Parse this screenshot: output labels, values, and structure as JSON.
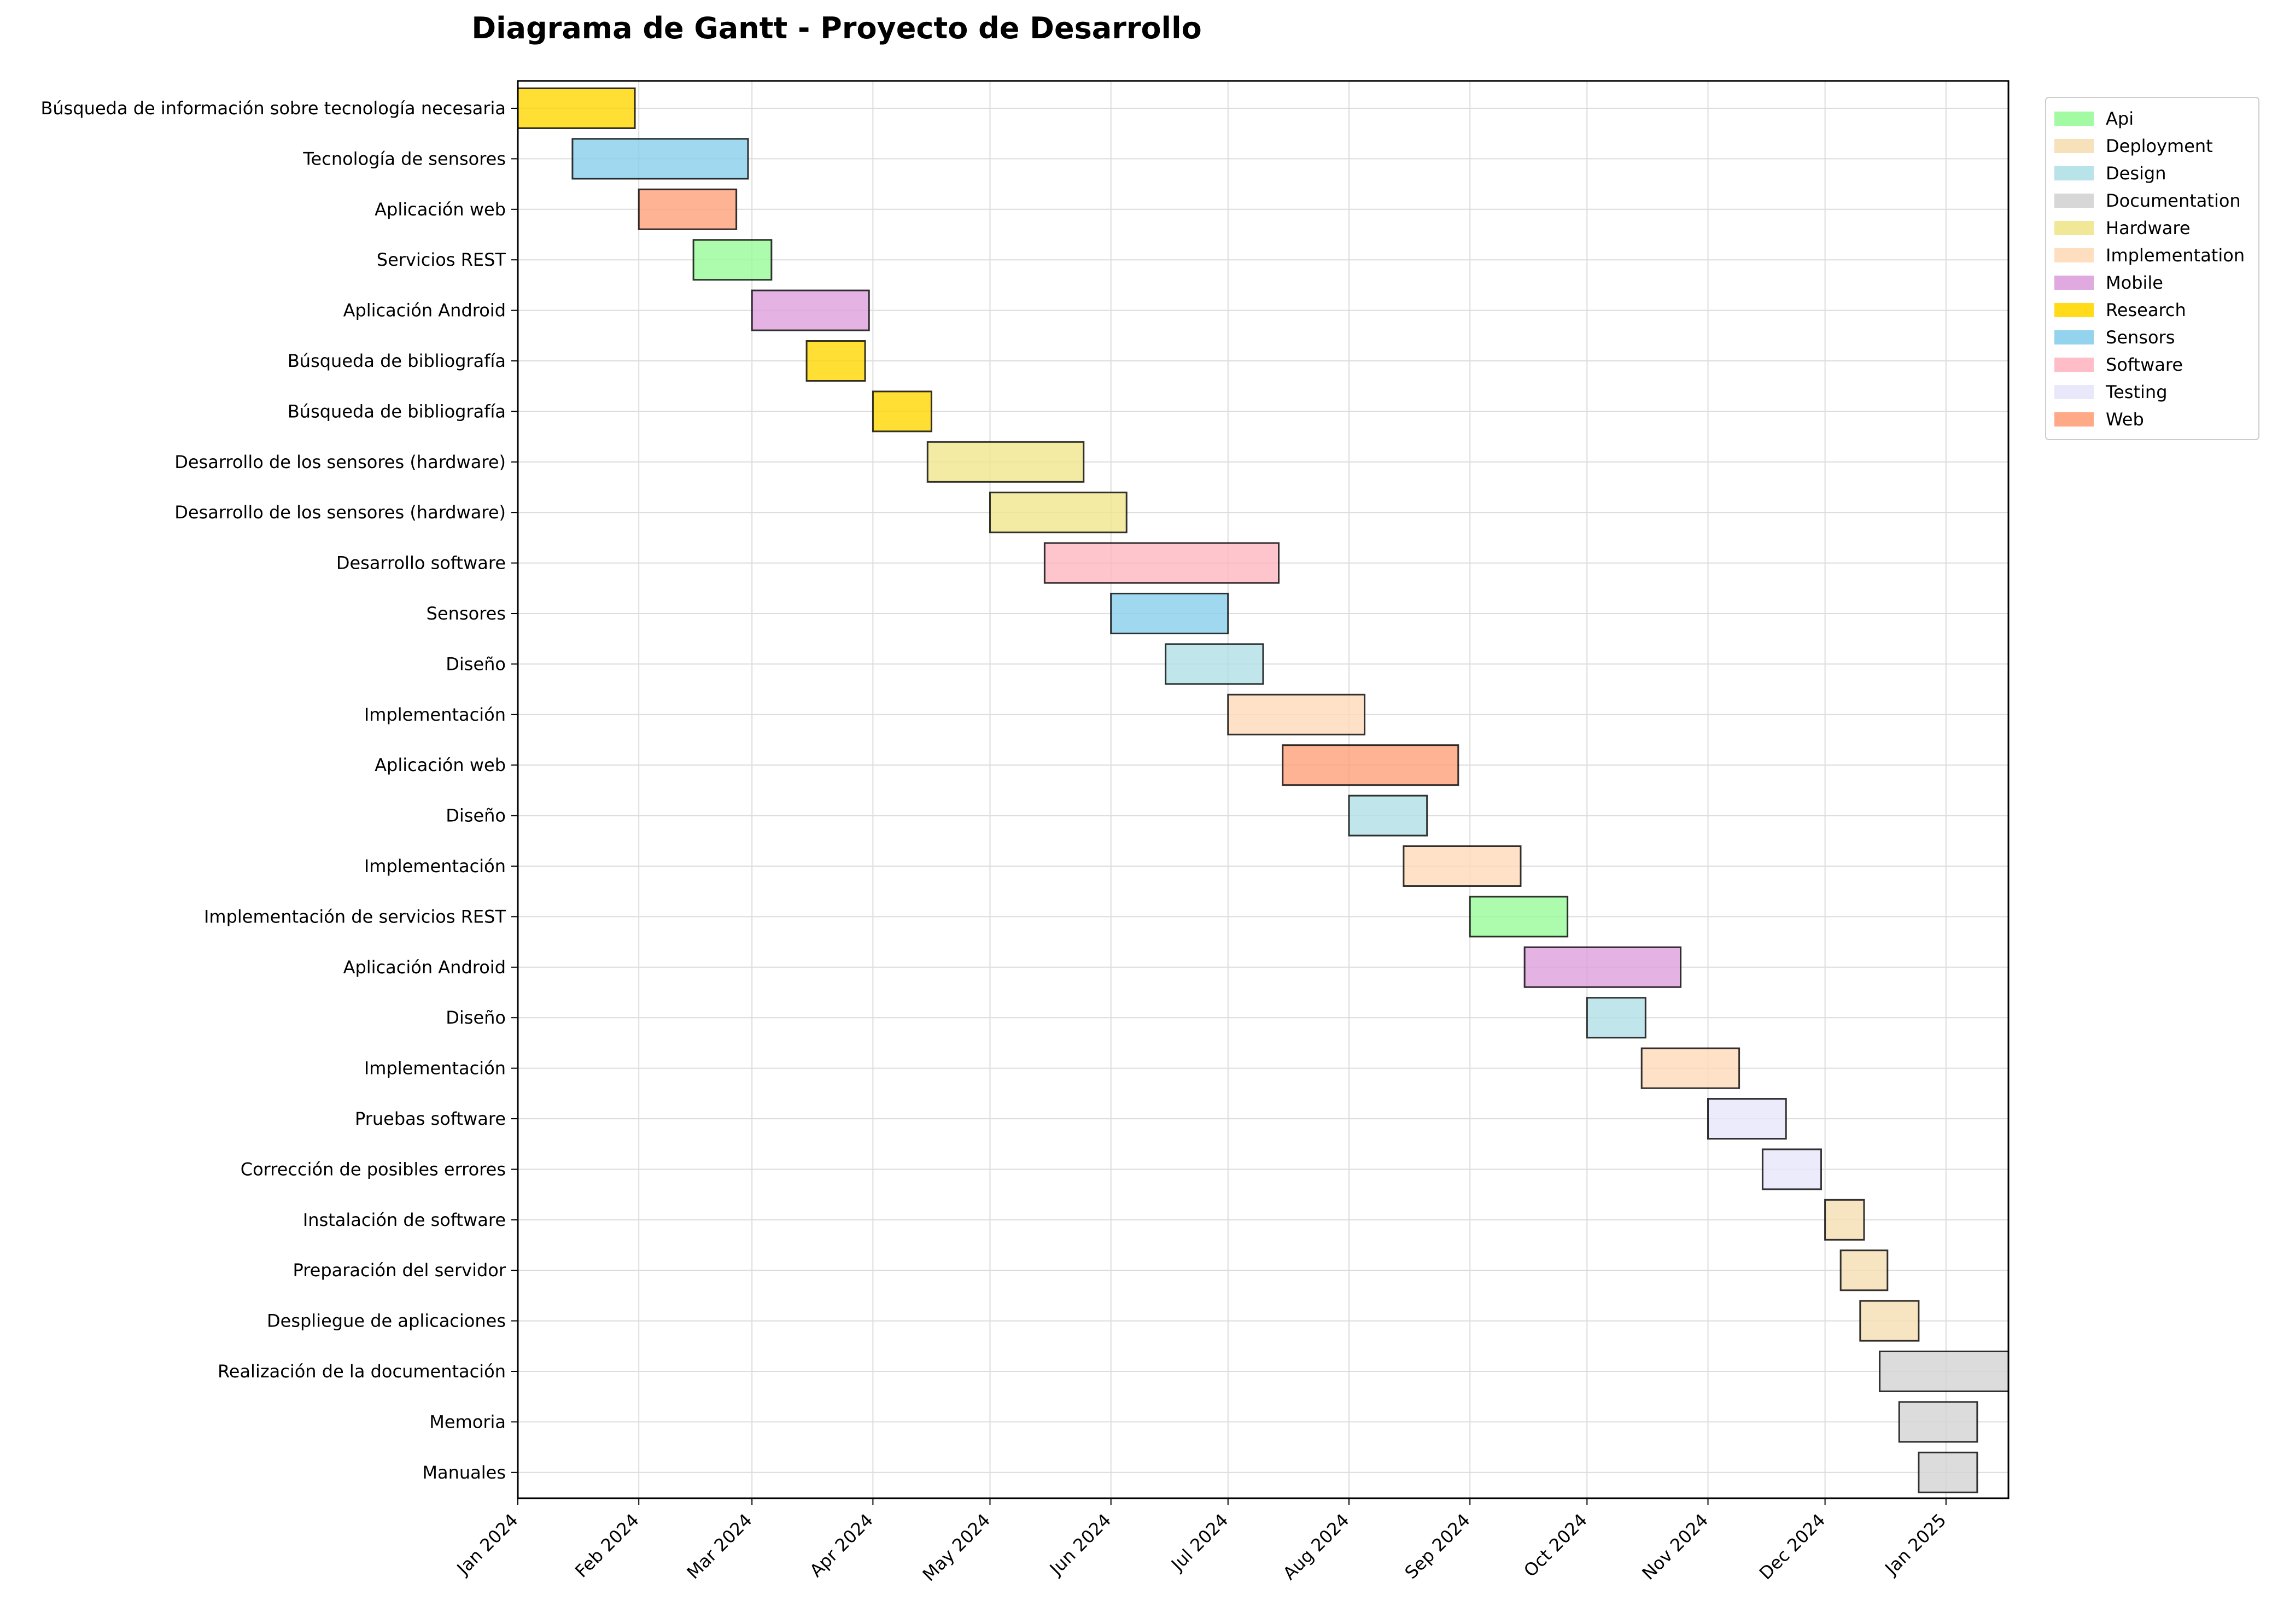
{
  "chart_data": {
    "type": "gantt",
    "title": "Diagrama de Gantt - Proyecto de Desarrollo",
    "xlabel": "",
    "ylabel": "",
    "x_ticks": [
      "Jan 2024",
      "Feb 2024",
      "Mar 2024",
      "Apr 2024",
      "May 2024",
      "Jun 2024",
      "Jul 2024",
      "Aug 2024",
      "Sep 2024",
      "Oct 2024",
      "Nov 2024",
      "Dec 2024",
      "Jan 2025"
    ],
    "xlim": [
      "2024-01-01",
      "2025-01-17"
    ],
    "grid": true,
    "legend_position": "outside top-right",
    "categories": [
      {
        "name": "Api",
        "color": "#98FB98"
      },
      {
        "name": "Deployment",
        "color": "#F5DEB3"
      },
      {
        "name": "Design",
        "color": "#B0E0E6"
      },
      {
        "name": "Documentation",
        "color": "#D3D3D3"
      },
      {
        "name": "Hardware",
        "color": "#F0E68C"
      },
      {
        "name": "Implementation",
        "color": "#FFDAB9"
      },
      {
        "name": "Mobile",
        "color": "#DDA0DD"
      },
      {
        "name": "Research",
        "color": "#FFD700"
      },
      {
        "name": "Sensors",
        "color": "#87CEEB"
      },
      {
        "name": "Software",
        "color": "#FFB6C1"
      },
      {
        "name": "Testing",
        "color": "#E6E6FA"
      },
      {
        "name": "Web",
        "color": "#FFA07A"
      }
    ],
    "tasks": [
      {
        "label": "Búsqueda de información sobre tecnología necesaria",
        "start": "2024-01-01",
        "end": "2024-01-31",
        "category": "Research"
      },
      {
        "label": "Tecnología de sensores",
        "start": "2024-01-15",
        "end": "2024-02-29",
        "category": "Sensors"
      },
      {
        "label": "Aplicación web",
        "start": "2024-02-01",
        "end": "2024-02-26",
        "category": "Web"
      },
      {
        "label": "Servicios REST",
        "start": "2024-02-15",
        "end": "2024-03-06",
        "category": "Api"
      },
      {
        "label": "Aplicación Android",
        "start": "2024-03-01",
        "end": "2024-03-31",
        "category": "Mobile"
      },
      {
        "label": "Búsqueda de bibliografía",
        "start": "2024-03-15",
        "end": "2024-03-30",
        "category": "Research"
      },
      {
        "label": "Búsqueda de bibliografía",
        "start": "2024-04-01",
        "end": "2024-04-16",
        "category": "Research"
      },
      {
        "label": "Desarrollo de los sensores (hardware)",
        "start": "2024-04-15",
        "end": "2024-05-25",
        "category": "Hardware"
      },
      {
        "label": "Desarrollo de los sensores (hardware)",
        "start": "2024-05-01",
        "end": "2024-06-05",
        "category": "Hardware"
      },
      {
        "label": "Desarrollo software",
        "start": "2024-05-15",
        "end": "2024-07-14",
        "category": "Software"
      },
      {
        "label": "Sensores",
        "start": "2024-06-01",
        "end": "2024-07-01",
        "category": "Sensors"
      },
      {
        "label": "Diseño",
        "start": "2024-06-15",
        "end": "2024-07-10",
        "category": "Design"
      },
      {
        "label": "Implementación",
        "start": "2024-07-01",
        "end": "2024-08-05",
        "category": "Implementation"
      },
      {
        "label": "Aplicación web",
        "start": "2024-07-15",
        "end": "2024-08-29",
        "category": "Web"
      },
      {
        "label": "Diseño",
        "start": "2024-08-01",
        "end": "2024-08-21",
        "category": "Design"
      },
      {
        "label": "Implementación",
        "start": "2024-08-15",
        "end": "2024-09-14",
        "category": "Implementation"
      },
      {
        "label": "Implementación de servicios REST",
        "start": "2024-09-01",
        "end": "2024-09-26",
        "category": "Api"
      },
      {
        "label": "Aplicación Android",
        "start": "2024-09-15",
        "end": "2024-10-25",
        "category": "Mobile"
      },
      {
        "label": "Diseño",
        "start": "2024-10-01",
        "end": "2024-10-16",
        "category": "Design"
      },
      {
        "label": "Implementación",
        "start": "2024-10-15",
        "end": "2024-11-09",
        "category": "Implementation"
      },
      {
        "label": "Pruebas software",
        "start": "2024-11-01",
        "end": "2024-11-21",
        "category": "Testing"
      },
      {
        "label": "Corrección de posibles errores",
        "start": "2024-11-15",
        "end": "2024-11-30",
        "category": "Testing"
      },
      {
        "label": "Instalación de software",
        "start": "2024-12-01",
        "end": "2024-12-11",
        "category": "Deployment"
      },
      {
        "label": "Preparación del servidor",
        "start": "2024-12-05",
        "end": "2024-12-17",
        "category": "Deployment"
      },
      {
        "label": "Despliegue de aplicaciones",
        "start": "2024-12-10",
        "end": "2024-12-25",
        "category": "Deployment"
      },
      {
        "label": "Realización de la documentación",
        "start": "2024-12-15",
        "end": "2025-01-17",
        "category": "Documentation"
      },
      {
        "label": "Memoria",
        "start": "2024-12-20",
        "end": "2025-01-09",
        "category": "Documentation"
      },
      {
        "label": "Manuales",
        "start": "2024-12-25",
        "end": "2025-01-09",
        "category": "Documentation"
      }
    ]
  }
}
